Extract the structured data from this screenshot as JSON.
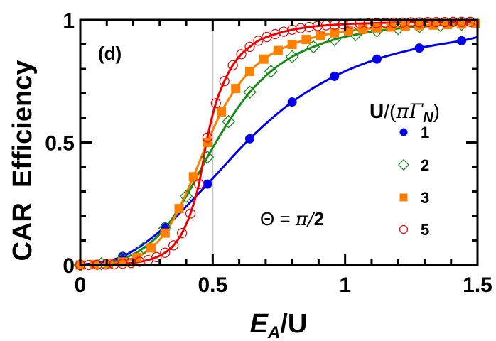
{
  "chart_data": {
    "type": "line",
    "title": "",
    "panel_label": "(d)",
    "xlabel": "E_A/U",
    "xlabel_parts": {
      "main": "E",
      "sub": "A",
      "rest": "/U"
    },
    "ylabel": "CAR  Efficiency",
    "xlim": [
      0,
      1.5
    ],
    "ylim": [
      0,
      1
    ],
    "x_ticks": [
      0,
      0.5,
      1,
      1.5
    ],
    "x_tick_labels": [
      "0",
      "0.5",
      "1",
      "1.5"
    ],
    "y_ticks": [
      0,
      0.5,
      1
    ],
    "y_tick_labels": [
      "0",
      "0.5",
      "1"
    ],
    "x_minor_step": 0.1,
    "y_minor_step": 0.1,
    "grid": false,
    "reference_line": {
      "x": 0.5,
      "color": "#c8c8c8"
    },
    "annotation": {
      "text_theta": "Θ = ",
      "text_pi": "π/",
      "text_two": "2",
      "full": "Θ = π/2"
    },
    "legend": {
      "title": "U/(πΓ_N)",
      "title_parts": {
        "u": "U",
        "slash_paren": "/(",
        "pi_gamma": "πΓ",
        "sub": "N",
        "close": ")"
      },
      "position": "right-center",
      "entries": [
        {
          "label": "1",
          "marker": "filled-circle",
          "color": "#0000ee"
        },
        {
          "label": "2",
          "marker": "open-diamond",
          "color": "#1a8c1a"
        },
        {
          "label": "3",
          "marker": "filled-square",
          "color": "#ff8000"
        },
        {
          "label": "5",
          "marker": "open-circle",
          "color": "#ee0000"
        }
      ]
    },
    "series": [
      {
        "name": "U/(πΓ_N) = 1",
        "color": "#0000ee",
        "marker": "filled-circle",
        "x": [
          0.0,
          0.16,
          0.32,
          0.48,
          0.64,
          0.8,
          0.96,
          1.12,
          1.28,
          1.44
        ],
        "y": [
          0.0,
          0.035,
          0.155,
          0.33,
          0.515,
          0.665,
          0.77,
          0.84,
          0.885,
          0.915
        ]
      },
      {
        "name": "U/(πΓ_N) = 2",
        "color": "#1a8c1a",
        "marker": "open-diamond",
        "x": [
          0.0,
          0.08,
          0.16,
          0.24,
          0.32,
          0.4,
          0.48,
          0.56,
          0.64,
          0.72,
          0.8,
          0.88,
          0.96,
          1.04,
          1.12,
          1.2,
          1.28,
          1.36,
          1.44
        ],
        "y": [
          0.0,
          0.005,
          0.025,
          0.07,
          0.15,
          0.28,
          0.44,
          0.585,
          0.705,
          0.79,
          0.85,
          0.89,
          0.92,
          0.94,
          0.955,
          0.965,
          0.972,
          0.978,
          0.982
        ]
      },
      {
        "name": "U/(πΓ_N) = 3",
        "color": "#ff8000",
        "marker": "filled-square",
        "x": [
          0.0,
          0.053,
          0.107,
          0.16,
          0.213,
          0.267,
          0.32,
          0.373,
          0.427,
          0.48,
          0.533,
          0.587,
          0.64,
          0.693,
          0.747,
          0.8,
          0.853,
          0.907,
          0.96,
          1.013,
          1.067,
          1.12,
          1.173,
          1.227,
          1.28,
          1.333,
          1.387,
          1.44,
          1.493
        ],
        "y": [
          0.0,
          0.002,
          0.005,
          0.012,
          0.03,
          0.07,
          0.13,
          0.23,
          0.36,
          0.5,
          0.625,
          0.72,
          0.79,
          0.84,
          0.875,
          0.9,
          0.92,
          0.935,
          0.947,
          0.955,
          0.962,
          0.967,
          0.971,
          0.974,
          0.977,
          0.979,
          0.981,
          0.983,
          0.984
        ]
      },
      {
        "name": "U/(πΓ_N) = 5",
        "color": "#ee0000",
        "marker": "open-circle",
        "x": [
          0.0,
          0.032,
          0.064,
          0.096,
          0.128,
          0.16,
          0.192,
          0.224,
          0.256,
          0.288,
          0.32,
          0.352,
          0.384,
          0.416,
          0.448,
          0.48,
          0.512,
          0.544,
          0.576,
          0.608,
          0.64,
          0.672,
          0.704,
          0.736,
          0.768,
          0.8,
          0.832,
          0.864,
          0.896,
          0.928,
          0.96,
          0.992,
          1.024,
          1.056,
          1.088,
          1.12,
          1.152,
          1.184,
          1.216,
          1.248,
          1.28,
          1.312,
          1.344,
          1.376,
          1.408,
          1.44,
          1.472
        ],
        "y": [
          0.0,
          0.0,
          0.001,
          0.002,
          0.003,
          0.005,
          0.008,
          0.013,
          0.02,
          0.032,
          0.05,
          0.08,
          0.13,
          0.21,
          0.33,
          0.52,
          0.66,
          0.75,
          0.815,
          0.86,
          0.89,
          0.915,
          0.93,
          0.942,
          0.952,
          0.96,
          0.966,
          0.971,
          0.975,
          0.978,
          0.98,
          0.982,
          0.984,
          0.985,
          0.986,
          0.987,
          0.988,
          0.989,
          0.989,
          0.99,
          0.99,
          0.991,
          0.991,
          0.991,
          0.992,
          0.992,
          0.992
        ]
      }
    ]
  }
}
